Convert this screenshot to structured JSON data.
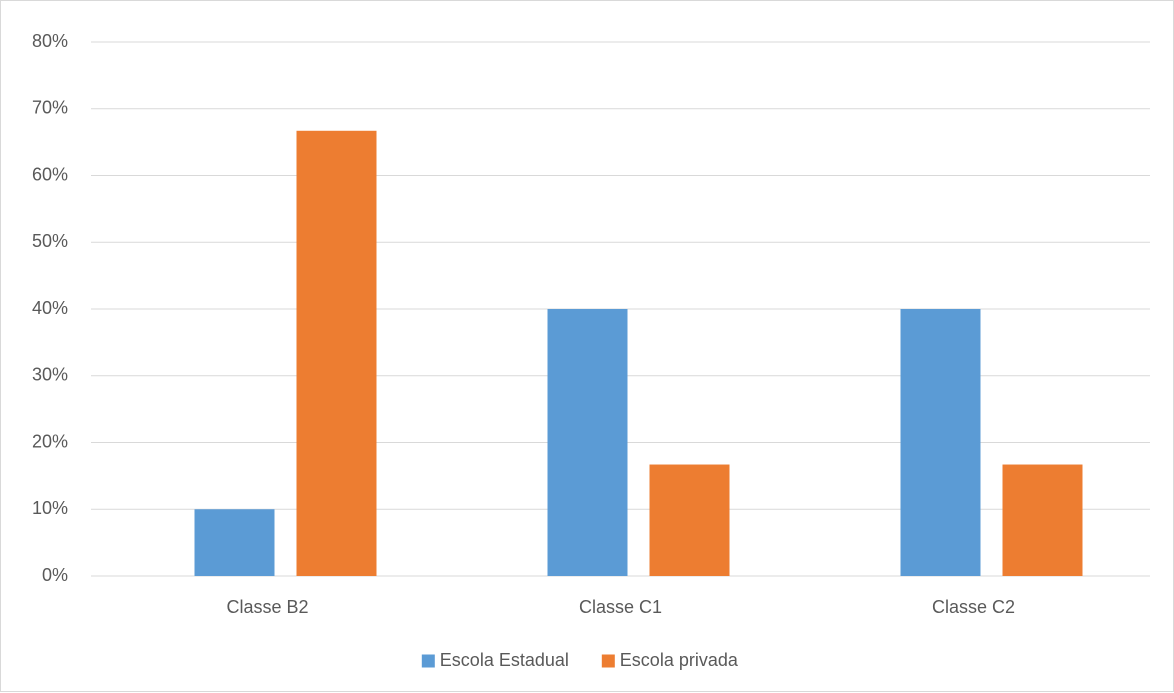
{
  "chart_data": {
    "type": "bar",
    "title": "",
    "xlabel": "",
    "ylabel": "",
    "categories": [
      "Classe B2",
      "Classe C1",
      "Classe C2"
    ],
    "series": [
      {
        "name": "Escola Estadual",
        "color": "#5B9BD5",
        "values": [
          10,
          40,
          40
        ]
      },
      {
        "name": "Escola privada",
        "color": "#ED7D31",
        "values": [
          66.7,
          16.7,
          16.7
        ]
      }
    ],
    "ylim": [
      0,
      80
    ],
    "yticks": [
      0,
      10,
      20,
      30,
      40,
      50,
      60,
      70,
      80
    ],
    "ytick_labels": [
      "0%",
      "10%",
      "20%",
      "30%",
      "40%",
      "50%",
      "60%",
      "70%",
      "80%"
    ],
    "grid": true,
    "gridline_color": "#d9d9d9",
    "legend_placement": "bottom"
  }
}
